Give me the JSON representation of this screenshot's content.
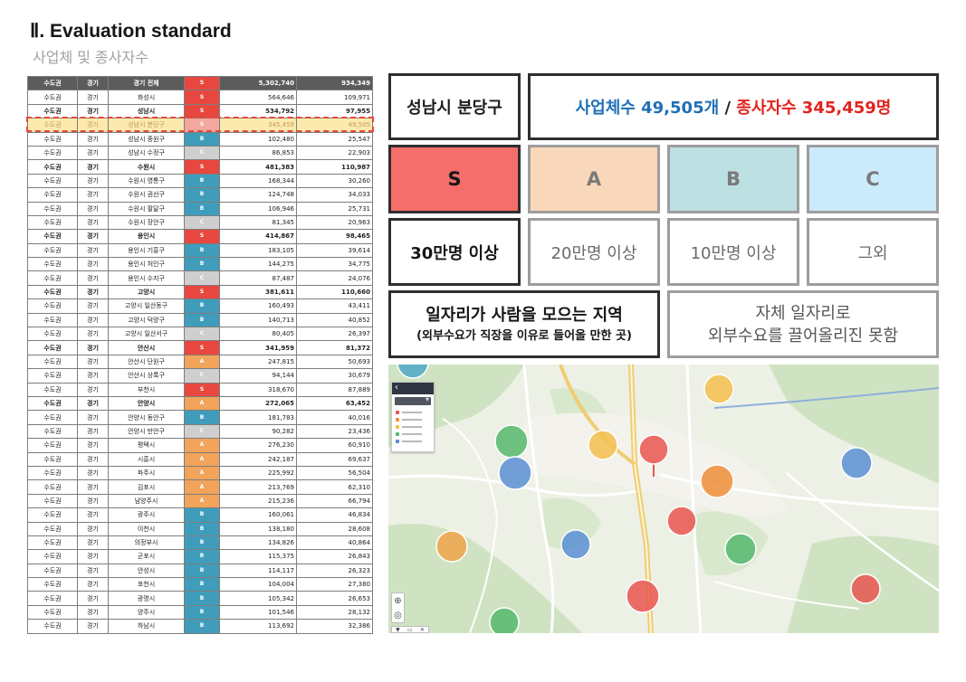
{
  "title": "Ⅱ. Evaluation standard",
  "subtitle": "사업체 및 종사자수",
  "grade_colors": {
    "S": "#e8473f",
    "A": "#f1a45a",
    "B": "#3f9dbb",
    "C": "#cfcfcf"
  },
  "table": {
    "rows": [
      {
        "region": "수도권",
        "province": "경기",
        "name": "경기 전체",
        "grade": "S",
        "employees": "5,302,740",
        "businesses": "934,349",
        "header": true
      },
      {
        "region": "수도권",
        "province": "경기",
        "name": "화성시",
        "grade": "S",
        "employees": "564,646",
        "businesses": "109,971"
      },
      {
        "region": "수도권",
        "province": "경기",
        "name": "성남시",
        "grade": "S",
        "employees": "534,792",
        "businesses": "97,955",
        "bold": true
      },
      {
        "region": "수도권",
        "province": "경기",
        "name": "성남시 분당구",
        "grade": "S",
        "employees": "345,459",
        "businesses": "49,505",
        "highlighted": true
      },
      {
        "region": "수도권",
        "province": "경기",
        "name": "성남시 중원구",
        "grade": "B",
        "employees": "102,480",
        "businesses": "25,547"
      },
      {
        "region": "수도권",
        "province": "경기",
        "name": "성남시 수정구",
        "grade": "C",
        "employees": "86,853",
        "businesses": "22,903"
      },
      {
        "region": "수도권",
        "province": "경기",
        "name": "수원시",
        "grade": "S",
        "employees": "481,383",
        "businesses": "110,987",
        "bold": true
      },
      {
        "region": "수도권",
        "province": "경기",
        "name": "수원시 영통구",
        "grade": "B",
        "employees": "168,344",
        "businesses": "30,260"
      },
      {
        "region": "수도권",
        "province": "경기",
        "name": "수원시 권선구",
        "grade": "B",
        "employees": "124,748",
        "businesses": "34,033"
      },
      {
        "region": "수도권",
        "province": "경기",
        "name": "수원시 팔달구",
        "grade": "B",
        "employees": "106,946",
        "businesses": "25,731"
      },
      {
        "region": "수도권",
        "province": "경기",
        "name": "수원시 장안구",
        "grade": "C",
        "employees": "81,345",
        "businesses": "20,963"
      },
      {
        "region": "수도권",
        "province": "경기",
        "name": "용인시",
        "grade": "S",
        "employees": "414,867",
        "businesses": "98,465",
        "bold": true
      },
      {
        "region": "수도권",
        "province": "경기",
        "name": "용인시 기흥구",
        "grade": "B",
        "employees": "183,105",
        "businesses": "39,614"
      },
      {
        "region": "수도권",
        "province": "경기",
        "name": "용인시 처인구",
        "grade": "B",
        "employees": "144,275",
        "businesses": "34,775"
      },
      {
        "region": "수도권",
        "province": "경기",
        "name": "용인시 수지구",
        "grade": "C",
        "employees": "87,487",
        "businesses": "24,076"
      },
      {
        "region": "수도권",
        "province": "경기",
        "name": "고양시",
        "grade": "S",
        "employees": "381,611",
        "businesses": "110,660",
        "bold": true
      },
      {
        "region": "수도권",
        "province": "경기",
        "name": "고양시 일산동구",
        "grade": "B",
        "employees": "160,493",
        "businesses": "43,411"
      },
      {
        "region": "수도권",
        "province": "경기",
        "name": "고양시 덕양구",
        "grade": "B",
        "employees": "140,713",
        "businesses": "40,852"
      },
      {
        "region": "수도권",
        "province": "경기",
        "name": "고양시 일산서구",
        "grade": "C",
        "employees": "80,405",
        "businesses": "26,397"
      },
      {
        "region": "수도권",
        "province": "경기",
        "name": "안산시",
        "grade": "S",
        "employees": "341,959",
        "businesses": "81,372",
        "bold": true
      },
      {
        "region": "수도권",
        "province": "경기",
        "name": "안산시 단원구",
        "grade": "A",
        "employees": "247,815",
        "businesses": "50,693"
      },
      {
        "region": "수도권",
        "province": "경기",
        "name": "안산시 상록구",
        "grade": "C",
        "employees": "94,144",
        "businesses": "30,679"
      },
      {
        "region": "수도권",
        "province": "경기",
        "name": "부천시",
        "grade": "S",
        "employees": "318,670",
        "businesses": "87,889"
      },
      {
        "region": "수도권",
        "province": "경기",
        "name": "안양시",
        "grade": "A",
        "employees": "272,065",
        "businesses": "63,452",
        "bold": true
      },
      {
        "region": "수도권",
        "province": "경기",
        "name": "안양시 동안구",
        "grade": "B",
        "employees": "181,783",
        "businesses": "40,016"
      },
      {
        "region": "수도권",
        "province": "경기",
        "name": "안양시 만안구",
        "grade": "C",
        "employees": "90,282",
        "businesses": "23,436"
      },
      {
        "region": "수도권",
        "province": "경기",
        "name": "평택시",
        "grade": "A",
        "employees": "276,230",
        "businesses": "60,910"
      },
      {
        "region": "수도권",
        "province": "경기",
        "name": "시흥시",
        "grade": "A",
        "employees": "242,187",
        "businesses": "69,637"
      },
      {
        "region": "수도권",
        "province": "경기",
        "name": "파주시",
        "grade": "A",
        "employees": "225,992",
        "businesses": "56,504"
      },
      {
        "region": "수도권",
        "province": "경기",
        "name": "김포시",
        "grade": "A",
        "employees": "213,769",
        "businesses": "62,310"
      },
      {
        "region": "수도권",
        "province": "경기",
        "name": "남양주시",
        "grade": "A",
        "employees": "215,236",
        "businesses": "66,794"
      },
      {
        "region": "수도권",
        "province": "경기",
        "name": "광주시",
        "grade": "B",
        "employees": "160,061",
        "businesses": "46,834"
      },
      {
        "region": "수도권",
        "province": "경기",
        "name": "이천시",
        "grade": "B",
        "employees": "138,180",
        "businesses": "28,608"
      },
      {
        "region": "수도권",
        "province": "경기",
        "name": "의정부시",
        "grade": "B",
        "employees": "134,826",
        "businesses": "40,864"
      },
      {
        "region": "수도권",
        "province": "경기",
        "name": "군포시",
        "grade": "B",
        "employees": "115,375",
        "businesses": "26,843"
      },
      {
        "region": "수도권",
        "province": "경기",
        "name": "안성시",
        "grade": "B",
        "employees": "114,117",
        "businesses": "26,323"
      },
      {
        "region": "수도권",
        "province": "경기",
        "name": "포천시",
        "grade": "B",
        "employees": "104,004",
        "businesses": "27,380"
      },
      {
        "region": "수도권",
        "province": "경기",
        "name": "광명시",
        "grade": "B",
        "employees": "105,342",
        "businesses": "26,653"
      },
      {
        "region": "수도권",
        "province": "경기",
        "name": "양주시",
        "grade": "B",
        "employees": "101,546",
        "businesses": "28,132"
      },
      {
        "region": "수도권",
        "province": "경기",
        "name": "하남시",
        "grade": "B",
        "employees": "113,692",
        "businesses": "32,386"
      }
    ]
  },
  "summary": {
    "district": "성남시 분당구",
    "businesses": "사업체수 49,505개",
    "separator": "/",
    "employees": "종사자수 345,459명",
    "businesses_color": "#1f6fb6",
    "employees_color": "#e3231f"
  },
  "grades": [
    {
      "label": "S",
      "fill": "#f56e6b"
    },
    {
      "label": "A",
      "fill": "#f9d7ba"
    },
    {
      "label": "B",
      "fill": "#bde0e2"
    },
    {
      "label": "C",
      "fill": "#cbebfa"
    }
  ],
  "thresholds": [
    "30만명 이상",
    "20만명 이상",
    "10만명 이상",
    "그외"
  ],
  "descriptions": {
    "attracting": {
      "line1": "일자리가 사람을 모으는 지역",
      "line2": "(외부수요가 직장을 이유로 들어올 만한 곳)"
    },
    "self_contained": {
      "line1": "자체 일자리로",
      "line2": "외부수요를 끌어올리진 못함"
    }
  },
  "map": {
    "cluster_colors": [
      "#4fa8c8",
      "#55b96d",
      "#5a8fd3",
      "#f2c04d",
      "#e85650",
      "#f2c04d",
      "#ee8e3a",
      "#e85650",
      "#55b96d",
      "#5a8fd3",
      "#f0a54b",
      "#5a8fd3",
      "#e85650",
      "#e85650",
      "#55b96d"
    ],
    "legend_colors": [
      "#e85650",
      "#ee8e3a",
      "#f2c04d",
      "#55b96d",
      "#5a8fd3"
    ],
    "icons": {
      "back": "chevron-left-icon",
      "select": "chevron-down-icon",
      "locate": "locate-icon",
      "layers": "layers-icon",
      "pin": "pin-icon",
      "print": "print-icon",
      "close": "close-icon"
    }
  }
}
